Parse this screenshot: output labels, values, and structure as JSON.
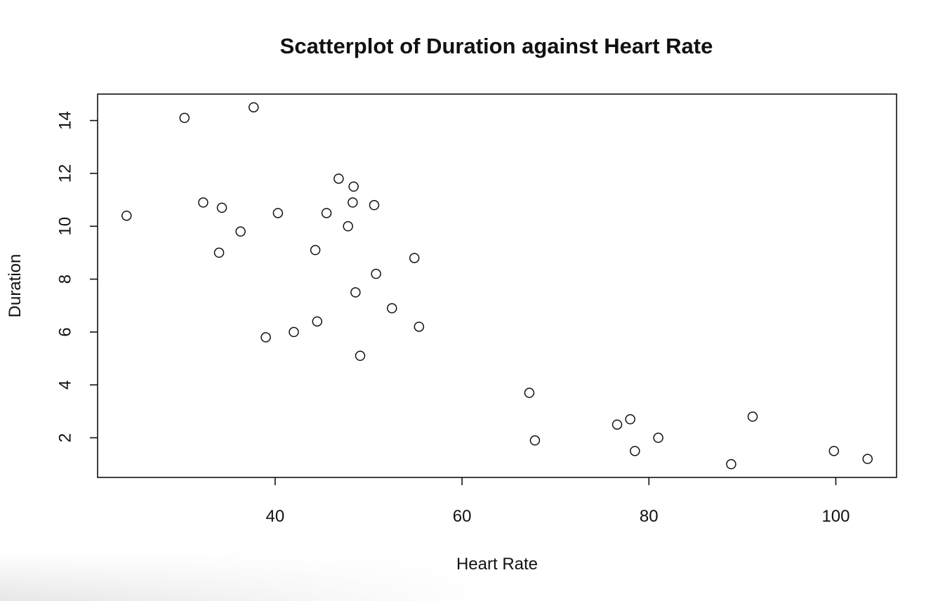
{
  "chart_data": {
    "type": "scatter",
    "title": "Scatterplot of Duration against Heart Rate",
    "xlabel": "Heart Rate",
    "ylabel": "Duration",
    "xlim": [
      21,
      106.5
    ],
    "ylim": [
      0.5,
      15.0
    ],
    "x_ticks": [
      40,
      60,
      80,
      100
    ],
    "y_ticks": [
      2,
      4,
      6,
      8,
      10,
      12,
      14
    ],
    "grid": false,
    "legend": "none",
    "marker": "open-circle",
    "points": [
      {
        "x": 24.1,
        "y": 10.4
      },
      {
        "x": 30.3,
        "y": 14.1
      },
      {
        "x": 32.3,
        "y": 10.9
      },
      {
        "x": 34.0,
        "y": 9.0
      },
      {
        "x": 34.3,
        "y": 10.7
      },
      {
        "x": 36.3,
        "y": 9.8
      },
      {
        "x": 37.7,
        "y": 14.5
      },
      {
        "x": 39.0,
        "y": 5.8
      },
      {
        "x": 40.3,
        "y": 10.5
      },
      {
        "x": 42.0,
        "y": 6.0
      },
      {
        "x": 44.3,
        "y": 9.1
      },
      {
        "x": 44.5,
        "y": 6.4
      },
      {
        "x": 45.5,
        "y": 10.5
      },
      {
        "x": 46.8,
        "y": 11.8
      },
      {
        "x": 47.8,
        "y": 10.0
      },
      {
        "x": 48.3,
        "y": 10.9
      },
      {
        "x": 48.4,
        "y": 11.5
      },
      {
        "x": 48.6,
        "y": 7.5
      },
      {
        "x": 49.1,
        "y": 5.1
      },
      {
        "x": 50.6,
        "y": 10.8
      },
      {
        "x": 50.8,
        "y": 8.2
      },
      {
        "x": 52.5,
        "y": 6.9
      },
      {
        "x": 54.9,
        "y": 8.8
      },
      {
        "x": 55.4,
        "y": 6.2
      },
      {
        "x": 67.2,
        "y": 3.7
      },
      {
        "x": 67.8,
        "y": 1.9
      },
      {
        "x": 76.6,
        "y": 2.5
      },
      {
        "x": 78.0,
        "y": 2.7
      },
      {
        "x": 78.5,
        "y": 1.5
      },
      {
        "x": 81.0,
        "y": 2.0
      },
      {
        "x": 88.8,
        "y": 1.0
      },
      {
        "x": 91.1,
        "y": 2.8
      },
      {
        "x": 99.8,
        "y": 1.5
      },
      {
        "x": 103.4,
        "y": 1.2
      }
    ]
  }
}
